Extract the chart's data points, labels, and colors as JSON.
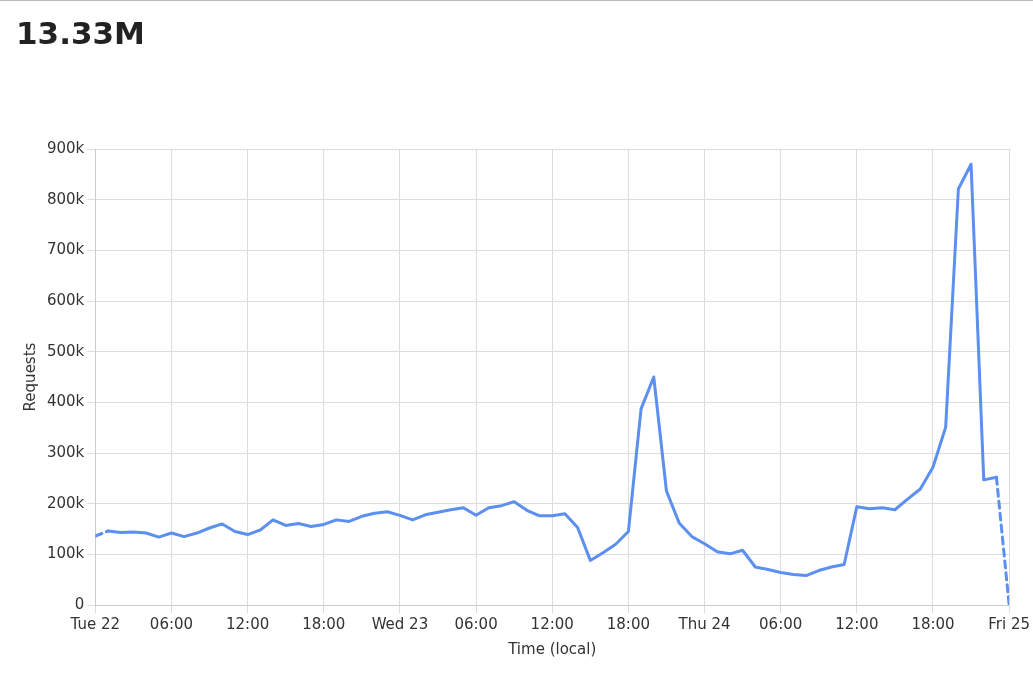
{
  "chart_data": {
    "type": "line",
    "title": "13.33M",
    "xlabel": "Time (local)",
    "ylabel": "Requests",
    "x": [
      "--10-22T00:00",
      "--10-22T01:00",
      "--10-22T02:00",
      "--10-22T03:00",
      "--10-22T04:00",
      "--10-22T05:00",
      "--10-22T06:00",
      "--10-22T07:00",
      "--10-22T08:00",
      "--10-22T09:00",
      "--10-22T10:00",
      "--10-22T11:00",
      "--10-22T12:00",
      "--10-22T13:00",
      "--10-22T14:00",
      "--10-22T15:00",
      "--10-22T16:00",
      "--10-22T17:00",
      "--10-22T18:00",
      "--10-22T19:00",
      "--10-22T20:00",
      "--10-22T21:00",
      "--10-22T22:00",
      "--10-22T23:00",
      "--10-23T00:00",
      "--10-23T01:00",
      "--10-23T02:00",
      "--10-23T03:00",
      "--10-23T04:00",
      "--10-23T05:00",
      "--10-23T06:00",
      "--10-23T07:00",
      "--10-23T08:00",
      "--10-23T09:00",
      "--10-23T10:00",
      "--10-23T11:00",
      "--10-23T12:00",
      "--10-23T13:00",
      "--10-23T14:00",
      "--10-23T15:00",
      "--10-23T16:00",
      "--10-23T17:00",
      "--10-23T18:00",
      "--10-23T19:00",
      "--10-23T20:00",
      "--10-23T21:00",
      "--10-23T22:00",
      "--10-23T23:00",
      "--10-24T00:00",
      "--10-24T01:00",
      "--10-24T02:00",
      "--10-24T03:00",
      "--10-24T04:00",
      "--10-24T05:00",
      "--10-24T06:00",
      "--10-24T07:00",
      "--10-24T08:00",
      "--10-24T09:00",
      "--10-24T10:00",
      "--10-24T11:00",
      "--10-24T12:00",
      "--10-24T13:00",
      "--10-24T14:00",
      "--10-24T15:00",
      "--10-24T16:00",
      "--10-24T17:00",
      "--10-24T18:00",
      "--10-24T19:00",
      "--10-24T20:00",
      "--10-24T21:00",
      "--10-24T22:00",
      "--10-24T23:00",
      "--10-25T00:00"
    ],
    "series": [
      {
        "color": "#5b8ff0",
        "line_style": "solid",
        "values": [
          null,
          146000,
          143000,
          144000,
          142000,
          134000,
          142000,
          135000,
          142000,
          152000,
          160000,
          145000,
          139000,
          148000,
          168000,
          157000,
          161000,
          155000,
          159000,
          168000,
          165000,
          175000,
          181000,
          184000,
          177000,
          168000,
          178000,
          183000,
          188000,
          192000,
          177000,
          192000,
          196000,
          204000,
          187000,
          176000,
          176000,
          180000,
          153000,
          88000,
          103000,
          120000,
          145000,
          387000,
          450000,
          225000,
          162000,
          135000,
          121000,
          105000,
          101000,
          108000,
          75000,
          70000,
          64000,
          60000,
          58000,
          68000,
          75000,
          80000,
          194000,
          190000,
          192000,
          188000,
          209000,
          229000,
          272000,
          351000,
          821000,
          870000,
          247000,
          252000,
          null
        ]
      },
      {
        "color": "#5b8ff0",
        "line_style": "dashed",
        "values": [
          136000,
          146000,
          null,
          null,
          null,
          null,
          null,
          null,
          null,
          null,
          null,
          null,
          null,
          null,
          null,
          null,
          null,
          null,
          null,
          null,
          null,
          null,
          null,
          null,
          null,
          null,
          null,
          null,
          null,
          null,
          null,
          null,
          null,
          null,
          null,
          null,
          null,
          null,
          null,
          null,
          null,
          null,
          null,
          null,
          null,
          null,
          null,
          null,
          null,
          null,
          null,
          null,
          null,
          null,
          null,
          null,
          null,
          null,
          null,
          null,
          null,
          null,
          null,
          null,
          null,
          null,
          null,
          null,
          null,
          null,
          null,
          252000,
          0
        ]
      }
    ],
    "xlim": [
      "--10-22T00:00",
      "--10-25T00:00"
    ],
    "xticks": [
      {
        "value": "--10-22T00:00",
        "label": "Tue 22"
      },
      {
        "value": "--10-22T06:00",
        "label": "06:00"
      },
      {
        "value": "--10-22T12:00",
        "label": "12:00"
      },
      {
        "value": "--10-22T18:00",
        "label": "18:00"
      },
      {
        "value": "--10-23T00:00",
        "label": "Wed 23"
      },
      {
        "value": "--10-23T06:00",
        "label": "06:00"
      },
      {
        "value": "--10-23T12:00",
        "label": "12:00"
      },
      {
        "value": "--10-23T18:00",
        "label": "18:00"
      },
      {
        "value": "--10-24T00:00",
        "label": "Thu 24"
      },
      {
        "value": "--10-24T06:00",
        "label": "06:00"
      },
      {
        "value": "--10-24T12:00",
        "label": "12:00"
      },
      {
        "value": "--10-24T18:00",
        "label": "18:00"
      },
      {
        "value": "--10-25T00:00",
        "label": "Fri 25"
      }
    ],
    "ylim": [
      0,
      900000
    ],
    "yticks": [
      0,
      {
        "value": 100000,
        "label": "100k"
      },
      {
        "value": 200000,
        "label": "200k"
      },
      {
        "value": 300000,
        "label": "300k"
      },
      {
        "value": 400000,
        "label": "400k"
      },
      {
        "value": 500000,
        "label": "500k"
      },
      {
        "value": 600000,
        "label": "600k"
      },
      {
        "value": 700000,
        "label": "700k"
      },
      {
        "value": 800000,
        "label": "800k"
      },
      {
        "value": 900000,
        "label": "900k"
      }
    ],
    "grid": true,
    "marker": "none"
  }
}
